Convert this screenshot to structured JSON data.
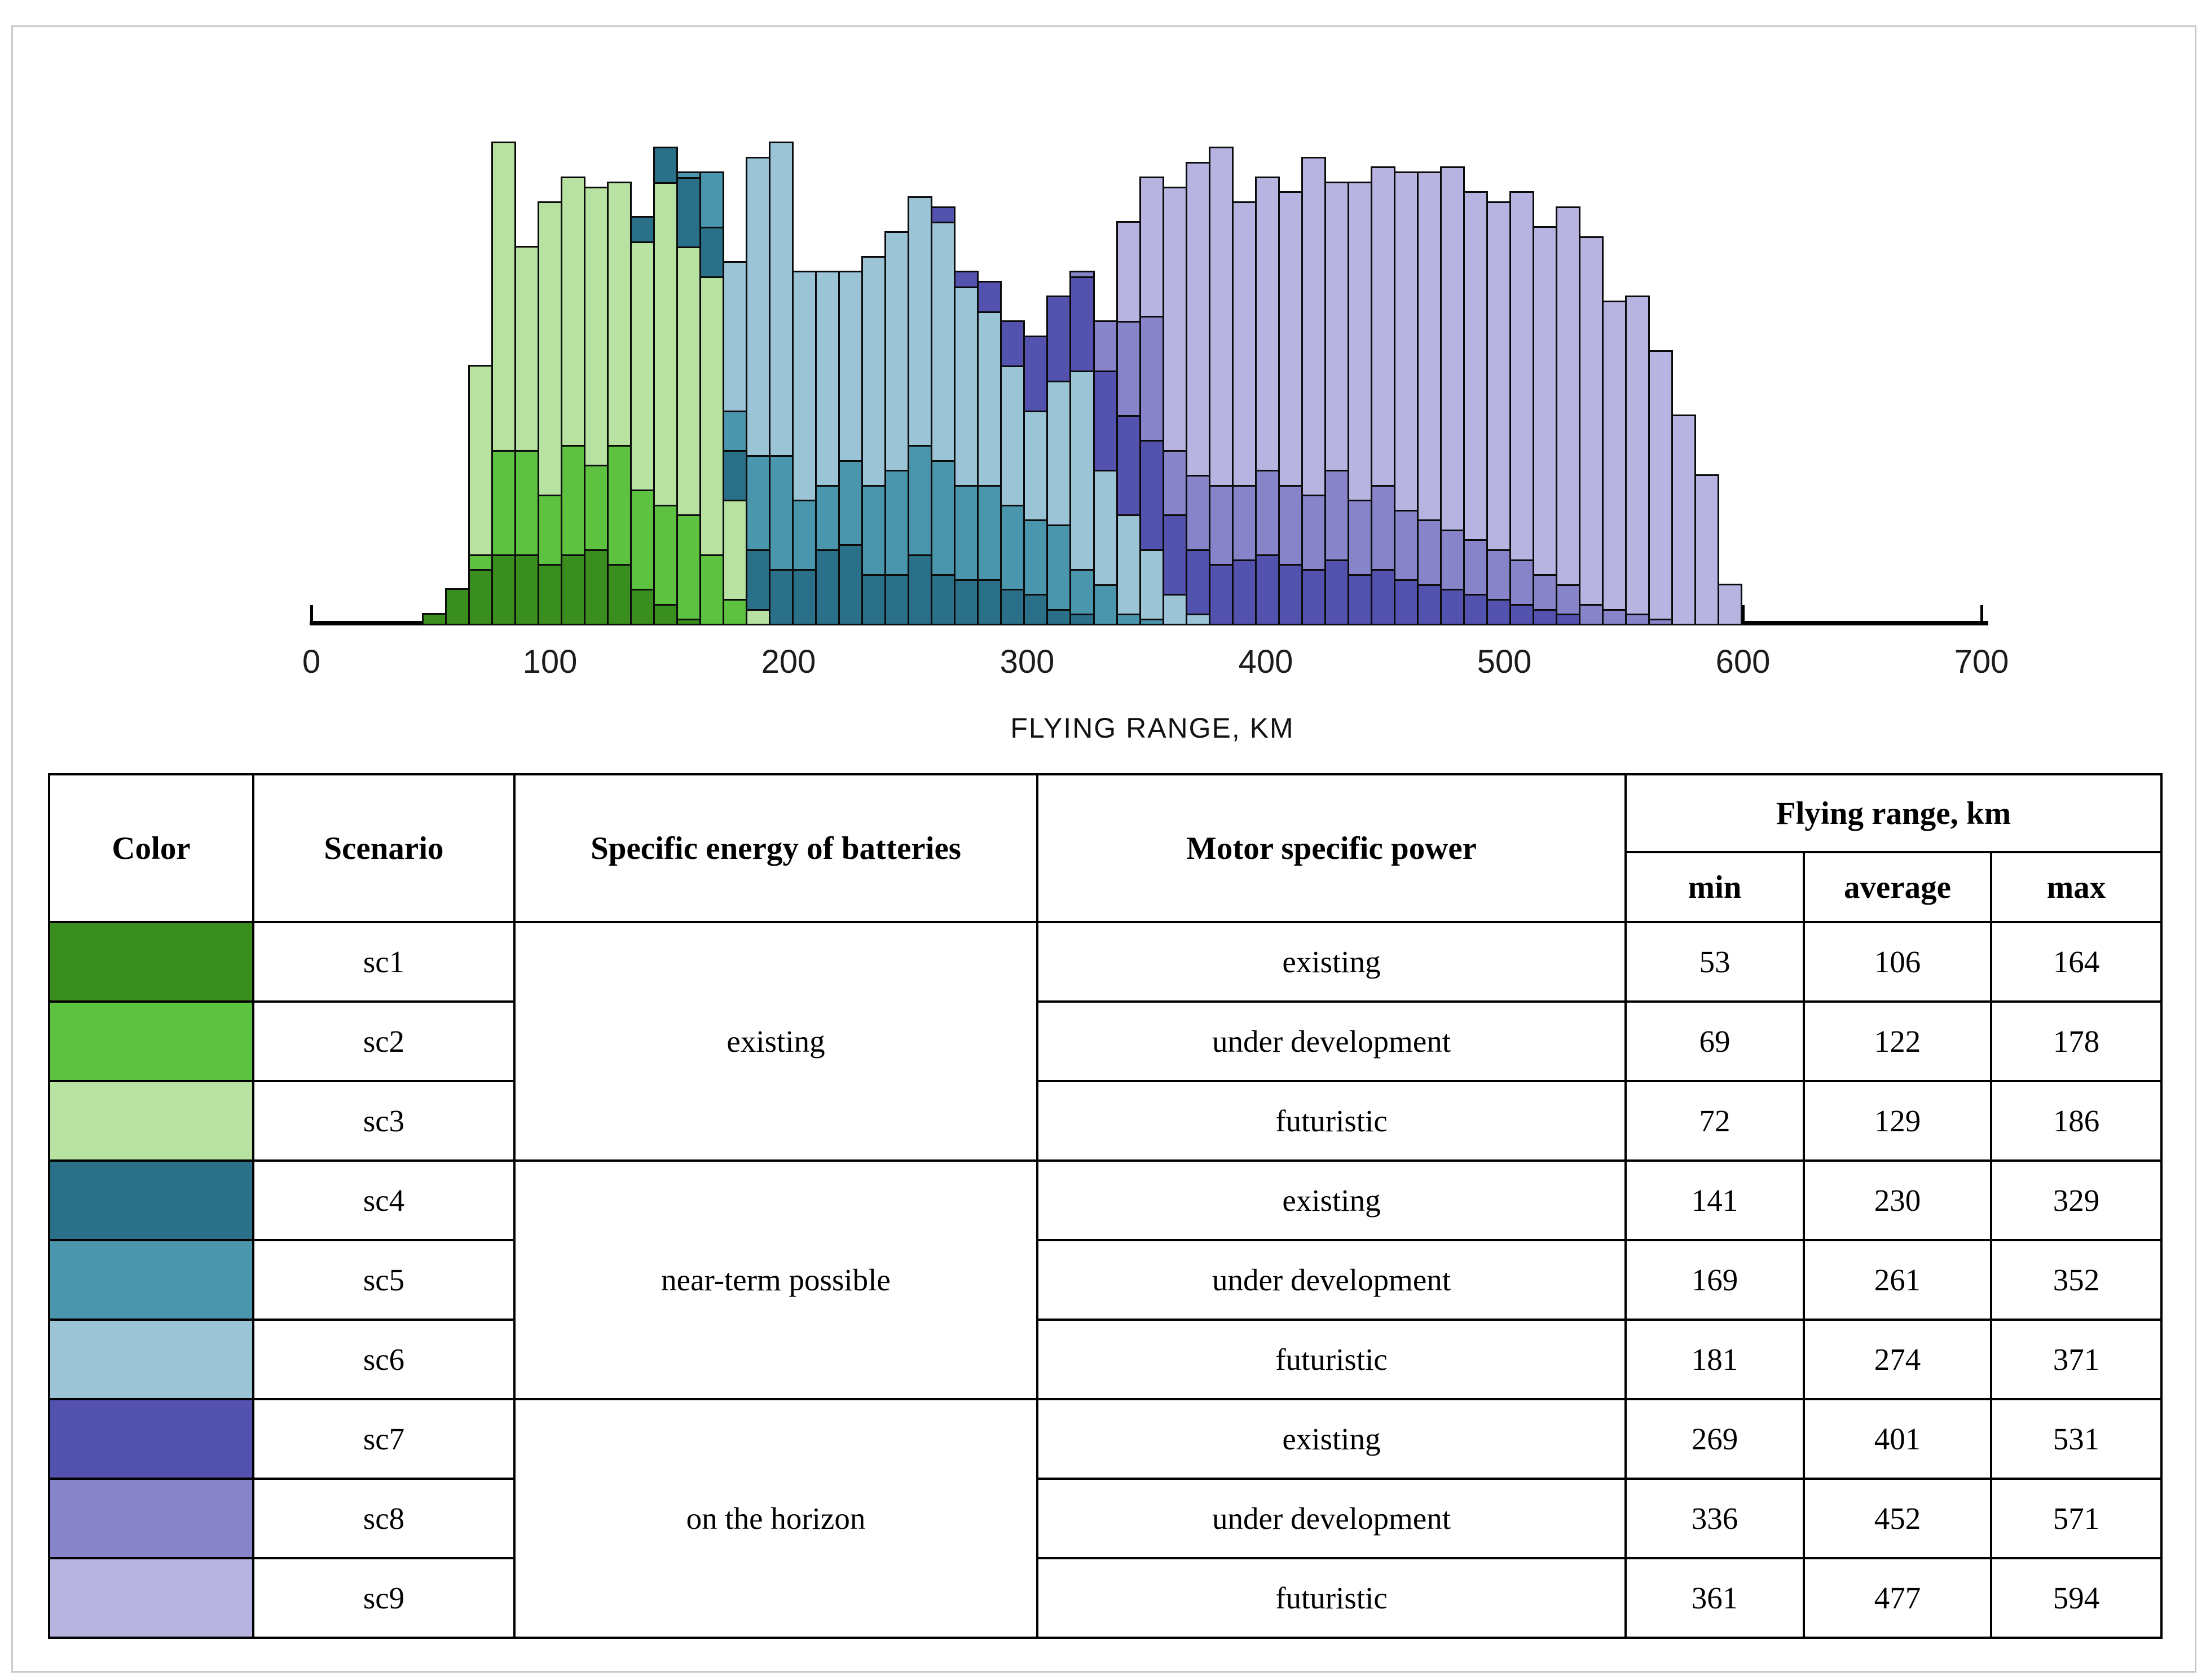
{
  "chart_data": {
    "type": "bar",
    "subtype": "stacked-histogram",
    "title": "",
    "xlabel": "FLYING RANGE, KM",
    "ylabel": "",
    "x_ticks": [
      0,
      100,
      200,
      300,
      400,
      500,
      600,
      700
    ],
    "xlim": [
      -5,
      704
    ],
    "grid": false,
    "legend_position": "table-below",
    "bin_start_km": 46.6,
    "bin_width_km": 9.7,
    "value_units": "relative frequency, 100 = tallest stack",
    "series": [
      {
        "name": "sc1",
        "color": "#3A8E1D",
        "start_bin": 0,
        "values": [
          2,
          7,
          11,
          14,
          14,
          12,
          14,
          15,
          12,
          7,
          4,
          1
        ]
      },
      {
        "name": "sc2",
        "color": "#5CC240",
        "start_bin": 2,
        "values": [
          3,
          21,
          21,
          14,
          22,
          17,
          24,
          20,
          20,
          21,
          14,
          5
        ]
      },
      {
        "name": "sc3",
        "color": "#B7E2A1",
        "start_bin": 2,
        "values": [
          38,
          62,
          41,
          59,
          54,
          56,
          53,
          50,
          65,
          54,
          56,
          20,
          3
        ]
      },
      {
        "name": "sc4",
        "color": "#2B7089",
        "start_bin": 9,
        "values": [
          5,
          7,
          14,
          10,
          10,
          12,
          11,
          11,
          15,
          16,
          10,
          10,
          14,
          10,
          9,
          9,
          7,
          6,
          3,
          2
        ]
      },
      {
        "name": "sc5",
        "color": "#4A96AC",
        "start_bin": 11,
        "values": [
          1,
          11,
          8,
          19,
          23,
          14,
          13,
          17,
          18,
          21,
          22,
          23,
          19,
          19,
          17,
          15,
          17,
          9,
          8,
          2,
          1
        ]
      },
      {
        "name": "sc6",
        "color": "#9CC4D7",
        "start_bin": 13,
        "values": [
          30,
          60,
          63,
          46,
          43,
          38,
          46,
          48,
          50,
          48,
          40,
          35,
          28,
          22,
          29,
          40,
          23,
          20,
          14,
          6,
          2
        ]
      },
      {
        "name": "sc7",
        "color": "#5452AF",
        "start_bin": 22,
        "values": [
          3,
          3,
          6,
          9,
          15,
          17,
          19,
          20,
          20,
          22,
          16,
          13,
          12,
          13,
          14,
          12,
          11,
          13,
          10,
          11,
          9,
          8,
          7,
          6,
          5,
          4,
          3,
          2
        ]
      },
      {
        "name": "sc8",
        "color": "#8784C9",
        "start_bin": 28,
        "values": [
          1,
          10,
          19,
          25,
          13,
          15,
          16,
          15,
          17,
          16,
          15,
          18,
          15,
          17,
          14,
          13,
          12,
          11,
          10,
          9,
          7,
          6,
          4,
          3,
          2,
          1
        ]
      },
      {
        "name": "sc9",
        "color": "#B7B4E1",
        "start_bin": 30,
        "values": [
          20,
          28,
          53,
          63,
          68,
          57,
          59,
          59,
          68,
          58,
          64,
          64,
          68,
          70,
          73,
          70,
          70,
          74,
          70,
          76,
          74,
          62,
          64,
          54,
          42,
          30,
          8
        ]
      }
    ]
  },
  "table": {
    "headers": {
      "color": "Color",
      "scenario": "Scenario",
      "battery": "Specific energy of batteries",
      "motor": "Motor specific power",
      "flying_range": "Flying range, km",
      "min": "min",
      "average": "average",
      "max": "max"
    },
    "groups": [
      {
        "battery": "existing",
        "rows": [
          {
            "scenario": "sc1",
            "motor": "existing",
            "min": 53,
            "average": 106,
            "max": 164
          },
          {
            "scenario": "sc2",
            "motor": "under development",
            "min": 69,
            "average": 122,
            "max": 178
          },
          {
            "scenario": "sc3",
            "motor": "futuristic",
            "min": 72,
            "average": 129,
            "max": 186
          }
        ]
      },
      {
        "battery": "near-term possible",
        "rows": [
          {
            "scenario": "sc4",
            "motor": "existing",
            "min": 141,
            "average": 230,
            "max": 329
          },
          {
            "scenario": "sc5",
            "motor": "under development",
            "min": 169,
            "average": 261,
            "max": 352
          },
          {
            "scenario": "sc6",
            "motor": "futuristic",
            "min": 181,
            "average": 274,
            "max": 371
          }
        ]
      },
      {
        "battery": "on the horizon",
        "rows": [
          {
            "scenario": "sc7",
            "motor": "existing",
            "min": 269,
            "average": 401,
            "max": 531
          },
          {
            "scenario": "sc8",
            "motor": "under development",
            "min": 336,
            "average": 452,
            "max": 571
          },
          {
            "scenario": "sc9",
            "motor": "futuristic",
            "min": 361,
            "average": 477,
            "max": 594
          }
        ]
      }
    ]
  }
}
